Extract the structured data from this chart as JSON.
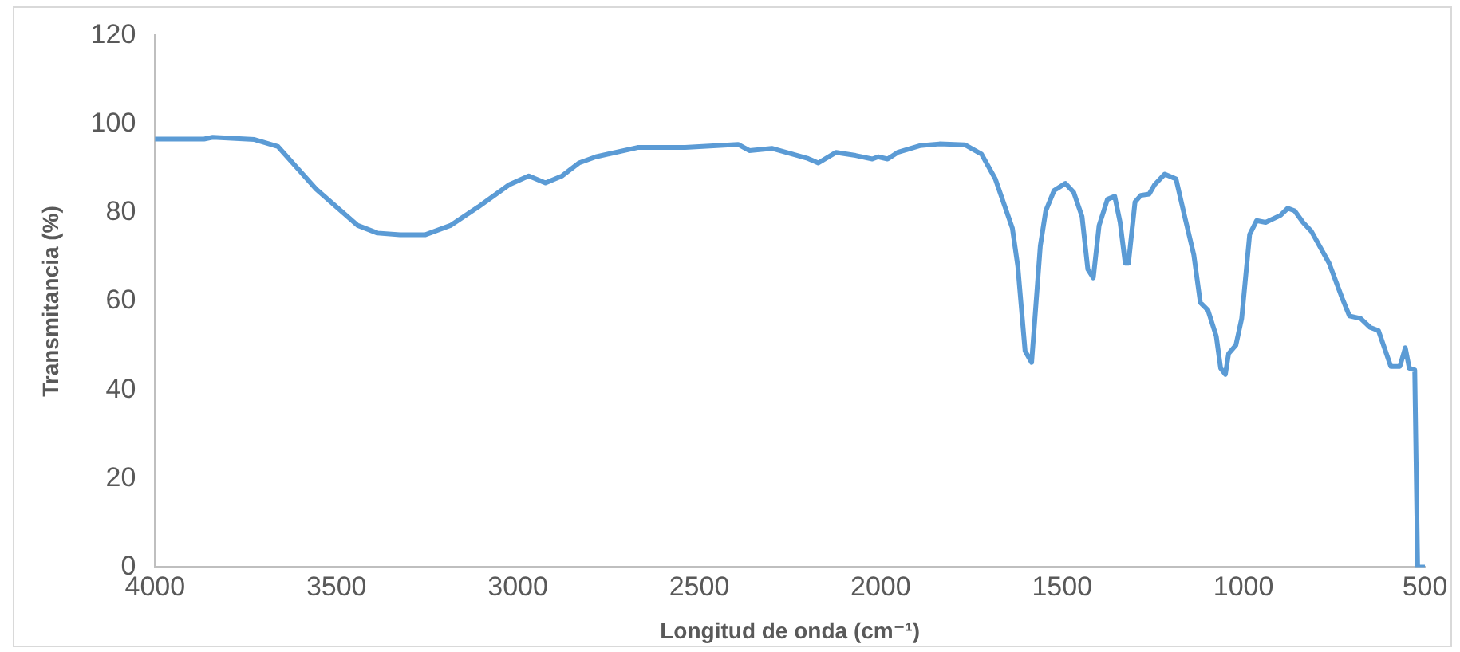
{
  "chart_data": {
    "type": "line",
    "xlabel": "Longitud de onda (cm⁻¹)",
    "ylabel": "Transmitancia (%)",
    "xlim": [
      4000,
      500
    ],
    "xticks": [
      4000,
      3500,
      3000,
      2500,
      2000,
      1500,
      1000,
      500
    ],
    "ylim": [
      0,
      120
    ],
    "yticks": [
      0,
      20,
      40,
      60,
      80,
      100,
      120
    ],
    "grid": false,
    "legend": false,
    "marker": "none",
    "line_style": "solid",
    "series": [
      {
        "color": "#5b9bd5",
        "x": [
          4000,
          3865,
          3841,
          3726,
          3661,
          3556,
          3441,
          3387,
          3325,
          3256,
          3186,
          3109,
          3024,
          2970,
          2924,
          2878,
          2832,
          2785,
          2670,
          2539,
          2393,
          2362,
          2300,
          2200,
          2172,
          2123,
          2069,
          2023,
          2007,
          1981,
          1953,
          1892,
          1838,
          1768,
          1722,
          1684,
          1637,
          1622,
          1602,
          1584,
          1560,
          1545,
          1522,
          1491,
          1468,
          1445,
          1429,
          1414,
          1398,
          1375,
          1355,
          1340,
          1326,
          1317,
          1299,
          1283,
          1260,
          1245,
          1217,
          1186,
          1160,
          1137,
          1119,
          1098,
          1075,
          1063,
          1050,
          1041,
          1021,
          1005,
          983,
          964,
          939,
          898,
          878,
          859,
          836,
          813,
          764,
          728,
          708,
          677,
          651,
          628,
          594,
          569,
          554,
          543,
          528,
          520,
          500
        ],
        "values": [
          96.6,
          96.6,
          97.0,
          96.5,
          94.9,
          85.3,
          77.1,
          75.4,
          75.0,
          75.0,
          77.1,
          81.3,
          86.3,
          88.3,
          86.7,
          88.3,
          91.2,
          92.6,
          94.7,
          94.7,
          95.4,
          94.0,
          94.5,
          92.2,
          91.2,
          93.6,
          92.9,
          92.1,
          92.6,
          92.1,
          93.6,
          95.1,
          95.5,
          95.3,
          93.2,
          87.6,
          76.5,
          67.9,
          48.8,
          46.2,
          72.5,
          80.4,
          85.0,
          86.6,
          84.6,
          79.1,
          67.2,
          65.3,
          77.1,
          83.0,
          83.7,
          77.8,
          68.6,
          68.6,
          82.4,
          83.9,
          84.2,
          86.3,
          88.7,
          87.6,
          78.4,
          70.5,
          59.7,
          58.0,
          52.1,
          44.9,
          43.5,
          48.2,
          50.1,
          56.1,
          75.1,
          78.2,
          77.8,
          79.4,
          81.0,
          80.4,
          77.8,
          75.8,
          68.6,
          60.7,
          56.7,
          56.1,
          54.1,
          53.4,
          45.3,
          45.3,
          49.5,
          44.9,
          44.5,
          0,
          0
        ]
      }
    ]
  }
}
